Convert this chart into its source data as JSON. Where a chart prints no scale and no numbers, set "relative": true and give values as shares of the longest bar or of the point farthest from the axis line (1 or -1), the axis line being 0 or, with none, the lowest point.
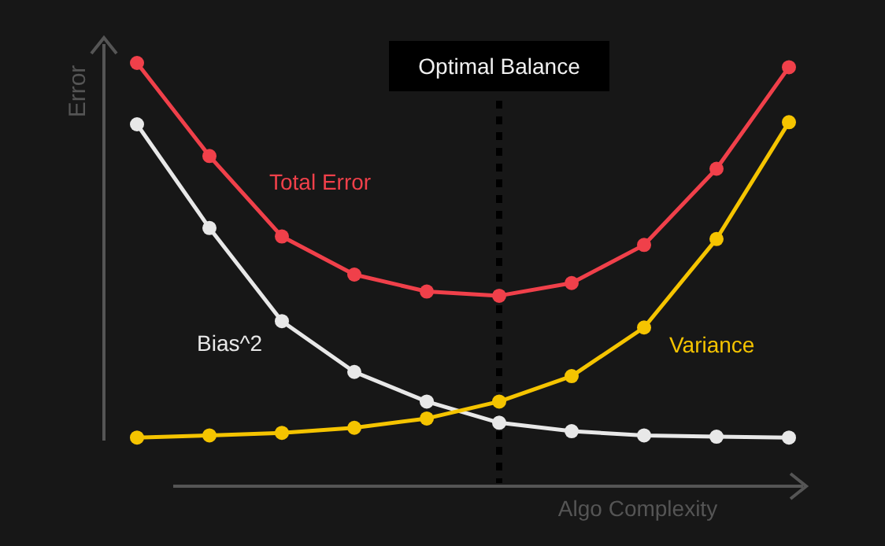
{
  "chart_data": {
    "type": "line",
    "relative": true,
    "xlabel": "Algo Complexity",
    "ylabel": "Error",
    "categories": [
      null,
      null,
      null,
      null,
      null,
      null,
      null,
      null,
      null,
      null
    ],
    "marker": "circle",
    "line_style": "solid",
    "grid": false,
    "legend": false,
    "series": [
      {
        "name": "Total Error",
        "color": "#f0404a",
        "values": [
          1,
          0.78,
          0.59,
          0.5,
          0.46,
          0.45,
          0.48,
          0.57,
          0.75,
          0.99
        ]
      },
      {
        "name": "Bias^2",
        "color": "#e8e8e8",
        "values": [
          0.855,
          0.61,
          0.39,
          0.27,
          0.2,
          0.15,
          0.13,
          0.12,
          0.117,
          0.115
        ]
      },
      {
        "name": "Variance",
        "color": "#f5c400",
        "values": [
          0.115,
          0.12,
          0.126,
          0.138,
          0.16,
          0.2,
          0.26,
          0.375,
          0.584,
          0.86
        ]
      }
    ],
    "annotations": [
      "Optimal Balance"
    ]
  }
}
